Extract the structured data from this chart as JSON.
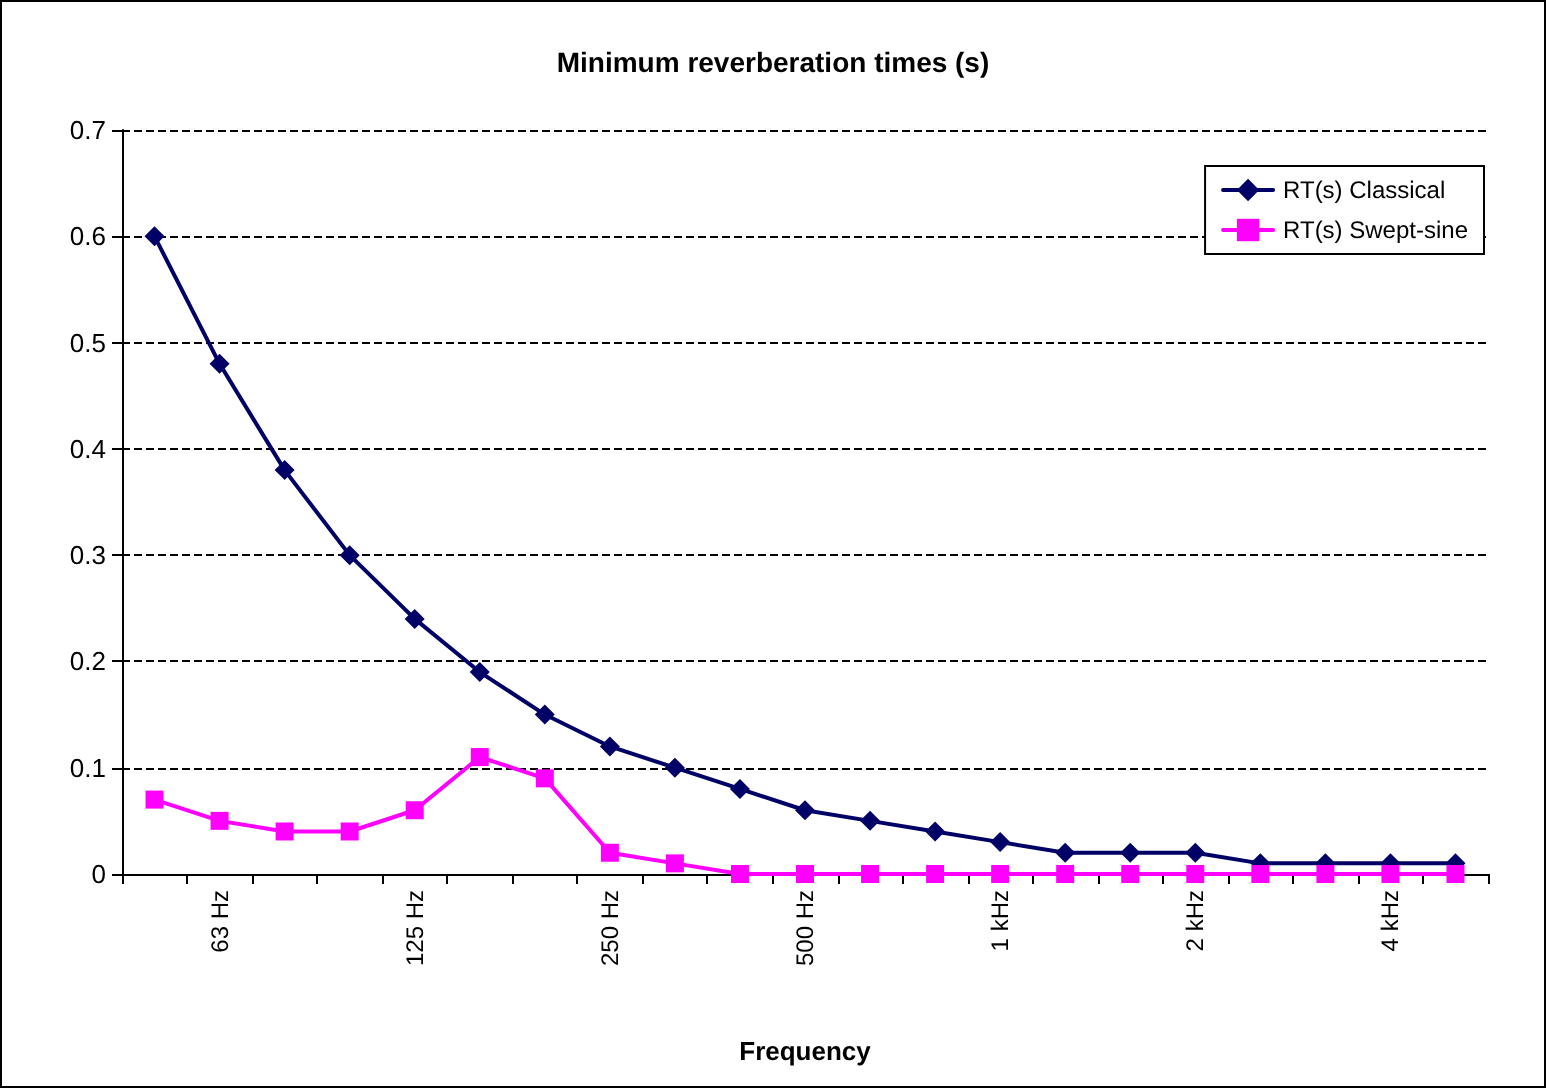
{
  "chart_data": {
    "type": "line",
    "title": "Minimum reverberation times (s)",
    "xlabel": "Frequency",
    "categories": [
      null,
      "63 Hz",
      null,
      null,
      "125 Hz",
      null,
      null,
      "250 Hz",
      null,
      null,
      "500 Hz",
      null,
      null,
      "1 kHz",
      null,
      null,
      "2 kHz",
      null,
      null,
      "4 kHz",
      null
    ],
    "series": [
      {
        "name": "RT(s) Classical",
        "color": "#000066",
        "marker": "diamond",
        "values": [
          0.6,
          0.48,
          0.38,
          0.3,
          0.24,
          0.19,
          0.15,
          0.12,
          0.1,
          0.08,
          0.06,
          0.05,
          0.04,
          0.03,
          0.02,
          0.02,
          0.02,
          0.01,
          0.01,
          0.01,
          0.01
        ]
      },
      {
        "name": "RT(s) Swept-sine",
        "color": "#ff00ff",
        "marker": "square",
        "values": [
          0.07,
          0.05,
          0.04,
          0.04,
          0.06,
          0.11,
          0.09,
          0.02,
          0.01,
          0,
          0,
          0,
          0,
          0,
          0,
          0,
          0,
          0,
          0,
          0,
          0
        ]
      }
    ],
    "ylim": [
      0,
      0.7
    ],
    "yticks": [
      0,
      0.1,
      0.2,
      0.3,
      0.4,
      0.5,
      0.6,
      0.7
    ],
    "grid": "y",
    "legend": "top right",
    "line_style": "solid"
  }
}
